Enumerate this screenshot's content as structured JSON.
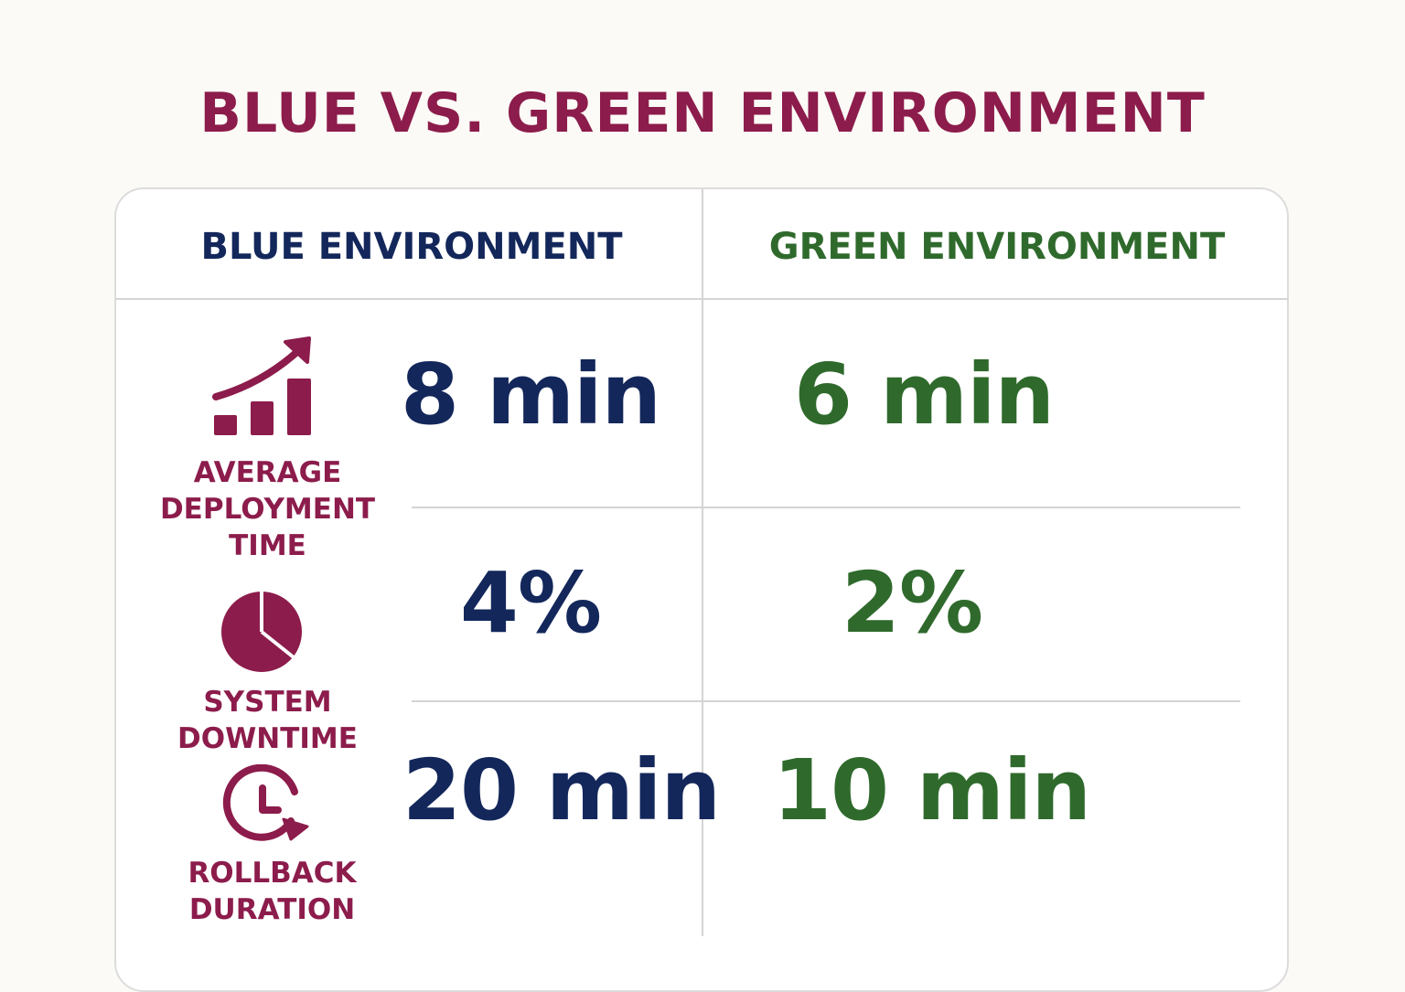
{
  "title": "BLUE VS. GREEN ENVIRONMENT",
  "colors": {
    "title": "#8c1c4b",
    "blue": "#13275b",
    "green": "#2f6a2c",
    "label": "#8c1c4b",
    "divider": "#d4d4d4"
  },
  "columns": {
    "blue_header": "BLUE ENVIRONMENT",
    "green_header": "GREEN ENVIRONMENT"
  },
  "metrics": [
    {
      "icon": "bar-chart-growth-icon",
      "label_lines": [
        "AVERAGE",
        "DEPLOYMENT",
        "TIME"
      ],
      "blue": "8 min",
      "green": "6 min"
    },
    {
      "icon": "pie-chart-icon",
      "label_lines": [
        "SYSTEM",
        "DOWNTIME"
      ],
      "blue": "4%",
      "green": "2%"
    },
    {
      "icon": "clock-rollback-icon",
      "label_lines": [
        "ROLLBACK",
        "DURATION"
      ],
      "blue": "20 min",
      "green": "10 min"
    }
  ]
}
